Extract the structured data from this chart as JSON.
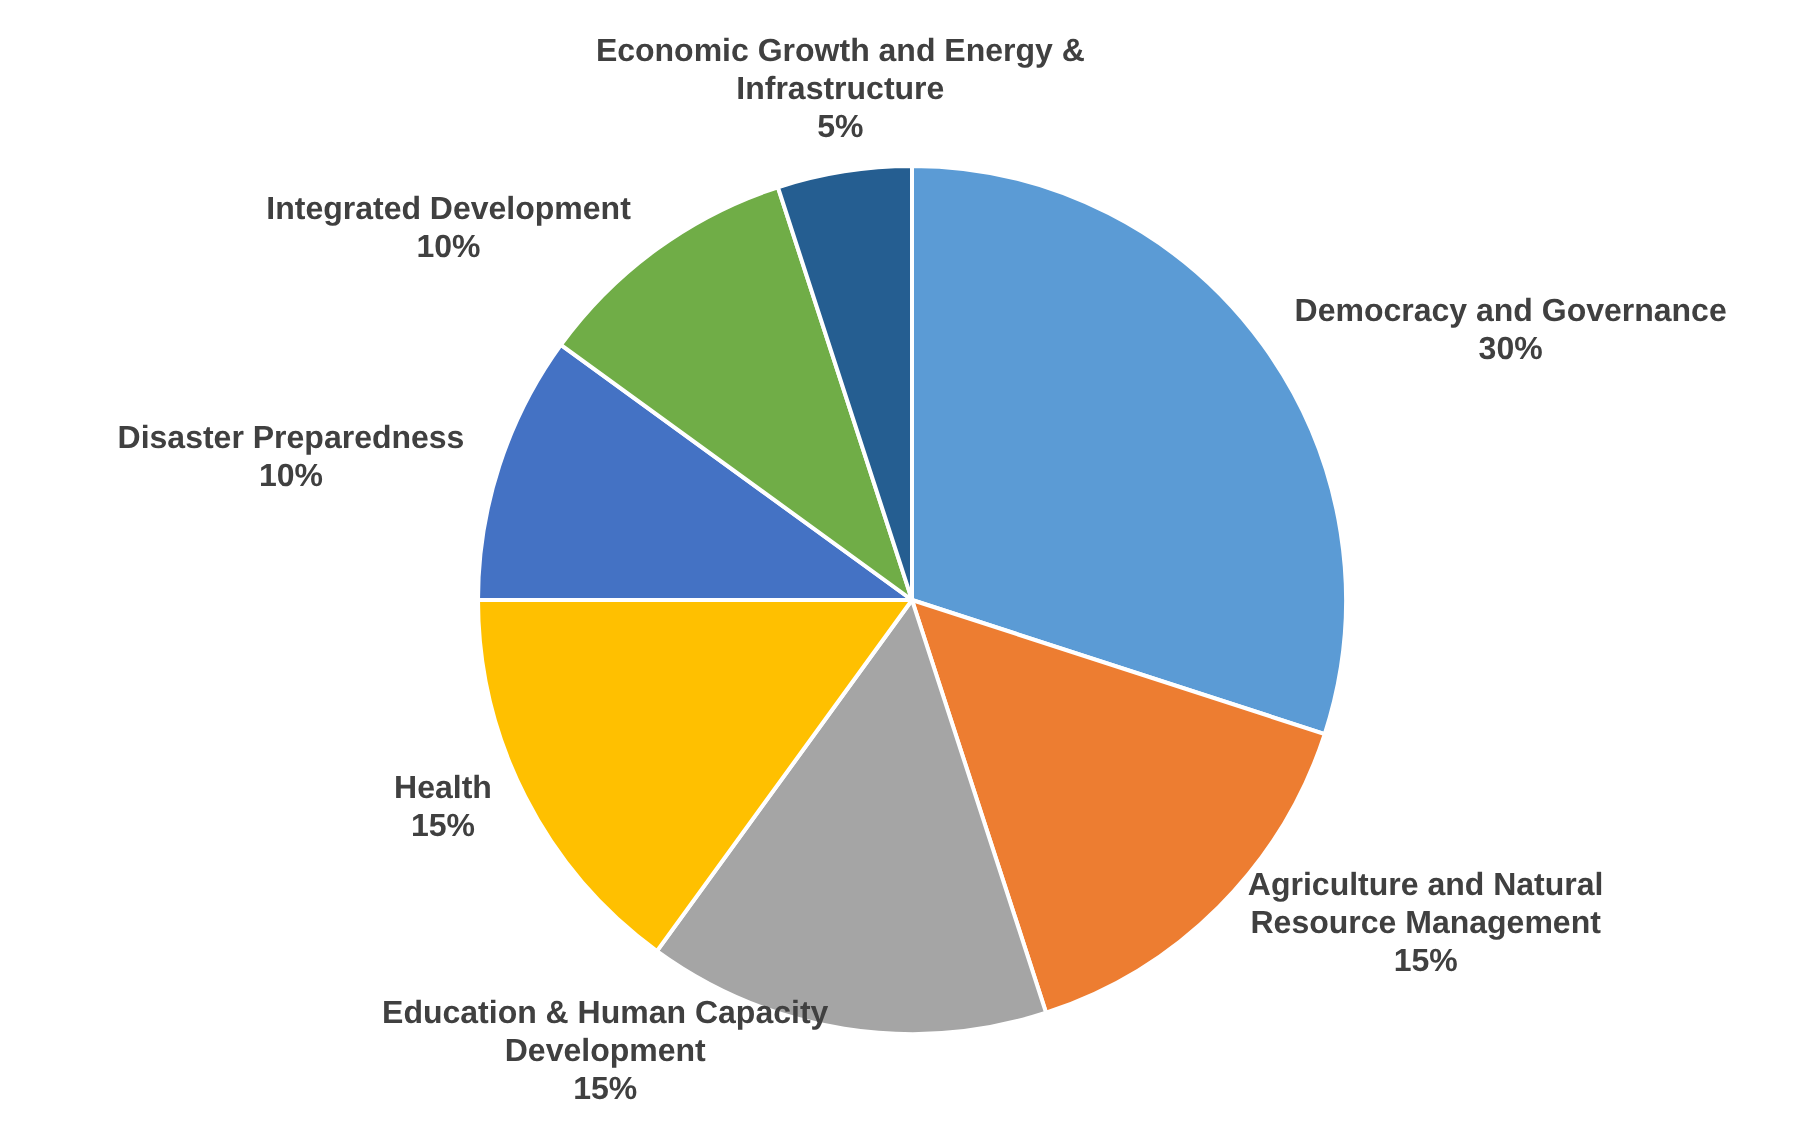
{
  "chart_data": {
    "type": "pie",
    "categories": [
      "Democracy and Governance",
      "Agriculture and Natural Resource Management",
      "Education & Human Capacity Development",
      "Health",
      "Disaster Preparedness",
      "Integrated Development",
      "Economic Growth and Energy & Infrastructure"
    ],
    "values": [
      30,
      15,
      15,
      15,
      10,
      10,
      5
    ],
    "colors": [
      "#5b9bd5",
      "#ed7d31",
      "#a5a5a5",
      "#ffc000",
      "#4472c4",
      "#70ad47",
      "#255e91"
    ],
    "value_labels": [
      "30%",
      "15%",
      "15%",
      "15%",
      "10%",
      "10%",
      "5%"
    ],
    "legend": false
  }
}
